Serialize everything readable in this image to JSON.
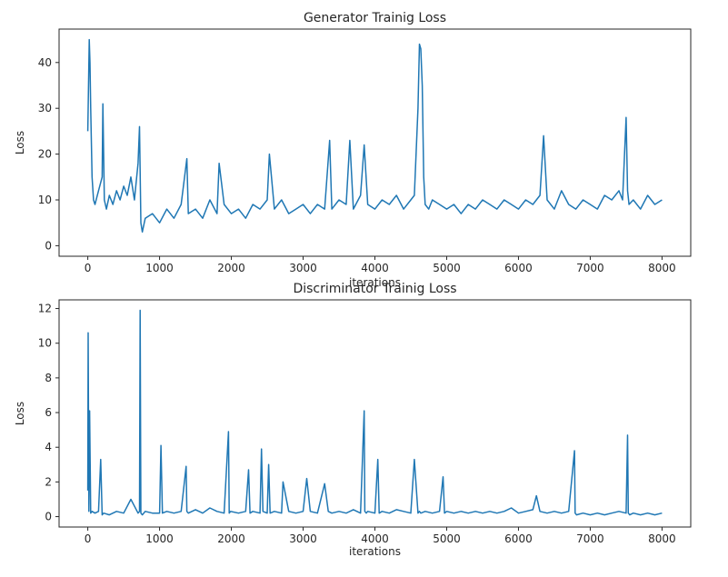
{
  "colors": {
    "series": "#1f77b4",
    "axis": "#262626",
    "background": "#ffffff"
  },
  "chart_data": [
    {
      "type": "line",
      "title": "Generator Trainig Loss",
      "xlabel": "iterations",
      "ylabel": "Loss",
      "xlim": [
        -400,
        8400
      ],
      "ylim": [
        -2.3,
        47.3
      ],
      "xticks": [
        0,
        1000,
        2000,
        3000,
        4000,
        5000,
        6000,
        7000,
        8000
      ],
      "yticks": [
        0,
        10,
        20,
        30,
        40
      ],
      "grid": false,
      "series": [
        {
          "x": [
            0,
            10,
            20,
            30,
            40,
            60,
            80,
            100,
            150,
            200,
            210,
            230,
            260,
            300,
            350,
            400,
            450,
            500,
            550,
            600,
            650,
            700,
            720,
            740,
            760,
            800,
            900,
            1000,
            1100,
            1200,
            1300,
            1380,
            1400,
            1500,
            1600,
            1700,
            1800,
            1830,
            1900,
            2000,
            2100,
            2200,
            2300,
            2400,
            2500,
            2530,
            2600,
            2700,
            2800,
            2900,
            3000,
            3100,
            3200,
            3300,
            3370,
            3400,
            3500,
            3600,
            3650,
            3700,
            3800,
            3850,
            3900,
            4000,
            4100,
            4200,
            4300,
            4400,
            4500,
            4550,
            4600,
            4620,
            4640,
            4660,
            4680,
            4700,
            4750,
            4800,
            4900,
            5000,
            5100,
            5200,
            5300,
            5400,
            5500,
            5600,
            5700,
            5800,
            5900,
            6000,
            6100,
            6200,
            6300,
            6350,
            6400,
            6500,
            6600,
            6700,
            6800,
            6900,
            7000,
            7100,
            7200,
            7300,
            7400,
            7450,
            7500,
            7520,
            7540,
            7600,
            7700,
            7800,
            7900,
            8000
          ],
          "y": [
            25,
            35,
            45,
            40,
            30,
            15,
            10,
            9,
            12,
            15,
            31,
            10,
            8,
            11,
            9,
            12,
            10,
            13,
            11,
            15,
            10,
            18,
            26,
            5,
            3,
            6,
            7,
            5,
            8,
            6,
            9,
            19,
            7,
            8,
            6,
            10,
            7,
            18,
            9,
            7,
            8,
            6,
            9,
            8,
            10,
            20,
            8,
            10,
            7,
            8,
            9,
            7,
            9,
            8,
            23,
            8,
            10,
            9,
            23,
            8,
            11,
            22,
            9,
            8,
            10,
            9,
            11,
            8,
            10,
            11,
            30,
            44,
            43,
            35,
            15,
            9,
            8,
            10,
            9,
            8,
            9,
            7,
            9,
            8,
            10,
            9,
            8,
            10,
            9,
            8,
            10,
            9,
            11,
            24,
            10,
            8,
            12,
            9,
            8,
            10,
            9,
            8,
            11,
            10,
            12,
            10,
            28,
            12,
            9,
            10,
            8,
            11,
            9,
            10
          ]
        }
      ]
    },
    {
      "type": "line",
      "title": "Discriminator Trainig Loss",
      "xlabel": "iterations",
      "ylabel": "Loss",
      "xlim": [
        -400,
        8400
      ],
      "ylim": [
        -0.6,
        12.5
      ],
      "xticks": [
        0,
        1000,
        2000,
        3000,
        4000,
        5000,
        6000,
        7000,
        8000
      ],
      "yticks": [
        0,
        2,
        4,
        6,
        8,
        10,
        12
      ],
      "grid": false,
      "series": [
        {
          "x": [
            0,
            5,
            15,
            25,
            40,
            60,
            100,
            150,
            180,
            200,
            220,
            300,
            400,
            500,
            600,
            700,
            720,
            730,
            740,
            760,
            800,
            900,
            1000,
            1020,
            1040,
            1100,
            1200,
            1300,
            1370,
            1380,
            1400,
            1500,
            1600,
            1700,
            1800,
            1900,
            1960,
            1970,
            1990,
            2100,
            2200,
            2240,
            2260,
            2300,
            2400,
            2420,
            2440,
            2500,
            2520,
            2540,
            2600,
            2700,
            2720,
            2800,
            2900,
            3000,
            3050,
            3100,
            3200,
            3300,
            3350,
            3400,
            3500,
            3600,
            3700,
            3800,
            3850,
            3860,
            3880,
            3900,
            4000,
            4040,
            4060,
            4100,
            4200,
            4300,
            4400,
            4500,
            4550,
            4600,
            4620,
            4640,
            4700,
            4800,
            4900,
            4950,
            4970,
            5000,
            5100,
            5200,
            5300,
            5400,
            5500,
            5600,
            5700,
            5800,
            5900,
            6000,
            6100,
            6200,
            6250,
            6300,
            6400,
            6500,
            6600,
            6700,
            6780,
            6790,
            6810,
            6900,
            7000,
            7100,
            7200,
            7300,
            7400,
            7500,
            7520,
            7530,
            7550,
            7600,
            7700,
            7800,
            7900,
            8000
          ],
          "y": [
            1.5,
            10.6,
            0.3,
            6.1,
            0.2,
            0.3,
            0.2,
            0.3,
            3.3,
            0.1,
            0.2,
            0.1,
            0.3,
            0.2,
            1.0,
            0.2,
            0.3,
            11.9,
            0.2,
            0.1,
            0.3,
            0.2,
            0.2,
            4.1,
            0.2,
            0.3,
            0.2,
            0.3,
            2.9,
            0.3,
            0.2,
            0.4,
            0.2,
            0.5,
            0.3,
            0.2,
            4.9,
            0.2,
            0.3,
            0.2,
            0.3,
            2.7,
            0.2,
            0.3,
            0.2,
            3.9,
            0.3,
            0.2,
            3.0,
            0.2,
            0.3,
            0.2,
            2.0,
            0.3,
            0.2,
            0.3,
            2.2,
            0.3,
            0.2,
            1.9,
            0.3,
            0.2,
            0.3,
            0.2,
            0.4,
            0.2,
            6.1,
            0.3,
            0.2,
            0.3,
            0.2,
            3.3,
            0.2,
            0.3,
            0.2,
            0.4,
            0.3,
            0.2,
            3.3,
            0.2,
            0.3,
            0.2,
            0.3,
            0.2,
            0.3,
            2.3,
            0.2,
            0.3,
            0.2,
            0.3,
            0.2,
            0.3,
            0.2,
            0.3,
            0.2,
            0.3,
            0.5,
            0.2,
            0.3,
            0.4,
            1.2,
            0.3,
            0.2,
            0.3,
            0.2,
            0.3,
            3.8,
            0.2,
            0.1,
            0.2,
            0.1,
            0.2,
            0.1,
            0.2,
            0.3,
            0.2,
            4.7,
            0.2,
            0.1,
            0.2,
            0.1,
            0.2,
            0.1,
            0.2
          ]
        }
      ]
    }
  ]
}
